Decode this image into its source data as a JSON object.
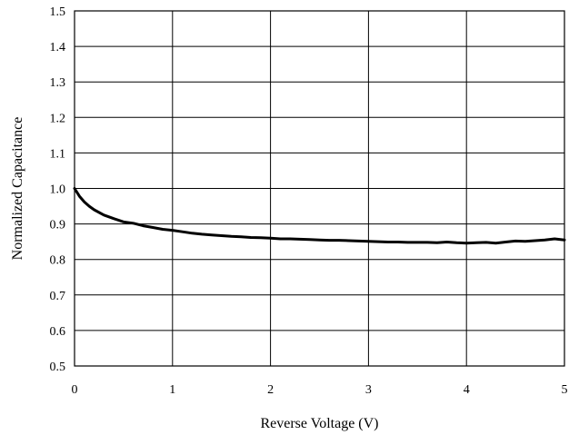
{
  "chart_data": {
    "type": "line",
    "title": "",
    "xlabel": "Reverse Voltage (V)",
    "ylabel": "Normalized Capacitance",
    "xlim": [
      0,
      5
    ],
    "ylim": [
      0.5,
      1.5
    ],
    "x_ticks": [
      "0",
      "1",
      "2",
      "3",
      "4",
      "5"
    ],
    "y_ticks": [
      "0.5",
      "0.6",
      "0.7",
      "0.8",
      "0.9",
      "1.0",
      "1.1",
      "1.2",
      "1.3",
      "1.4",
      "1.5"
    ],
    "grid": true,
    "series": [
      {
        "x": [
          0,
          0.05,
          0.1,
          0.15,
          0.2,
          0.3,
          0.4,
          0.5,
          0.6,
          0.7,
          0.8,
          0.9,
          1.0,
          1.1,
          1.2,
          1.3,
          1.4,
          1.5,
          1.6,
          1.7,
          1.8,
          1.9,
          2.0,
          2.1,
          2.2,
          2.3,
          2.4,
          2.5,
          2.6,
          2.7,
          2.8,
          2.9,
          3.0,
          3.1,
          3.2,
          3.3,
          3.4,
          3.5,
          3.6,
          3.7,
          3.8,
          3.9,
          4.0,
          4.1,
          4.2,
          4.3,
          4.4,
          4.5,
          4.6,
          4.7,
          4.8,
          4.9,
          5.0
        ],
        "y": [
          1.0,
          0.978,
          0.962,
          0.95,
          0.94,
          0.925,
          0.915,
          0.906,
          0.902,
          0.895,
          0.89,
          0.885,
          0.882,
          0.878,
          0.874,
          0.871,
          0.869,
          0.867,
          0.865,
          0.864,
          0.862,
          0.861,
          0.86,
          0.858,
          0.858,
          0.857,
          0.856,
          0.855,
          0.854,
          0.854,
          0.853,
          0.852,
          0.851,
          0.85,
          0.849,
          0.849,
          0.848,
          0.848,
          0.848,
          0.847,
          0.849,
          0.847,
          0.846,
          0.847,
          0.848,
          0.846,
          0.849,
          0.852,
          0.851,
          0.853,
          0.855,
          0.858,
          0.855
        ]
      }
    ]
  }
}
